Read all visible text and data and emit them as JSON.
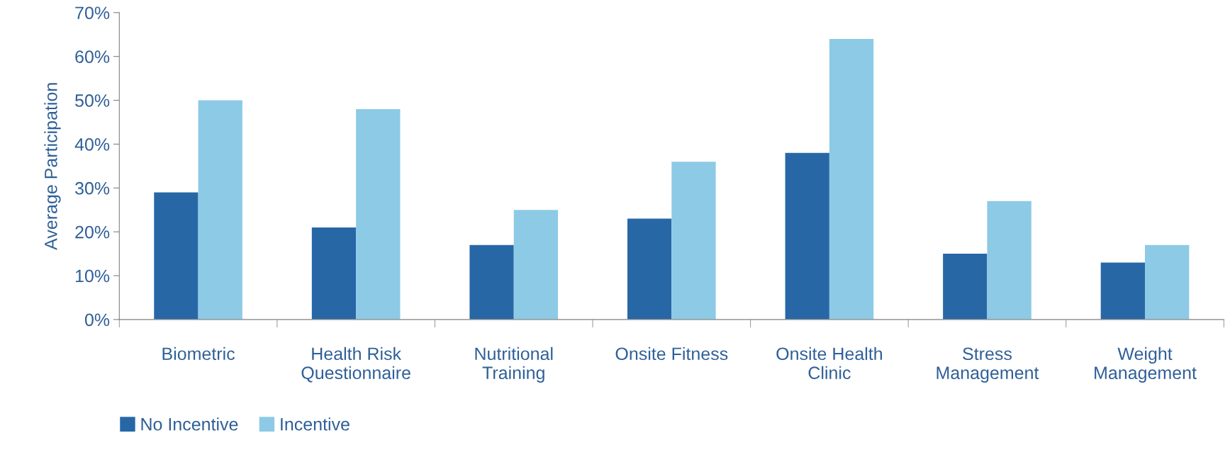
{
  "chart_data": {
    "type": "bar",
    "ylabel": "Average Participation",
    "categories": [
      "Biometric",
      "Health Risk\nQuestionnaire",
      "Nutritional\nTraining",
      "Onsite Fitness",
      "Onsite Health\nClinic",
      "Stress\nManagement",
      "Weight\nManagement"
    ],
    "series": [
      {
        "name": "No Incentive",
        "color": "#2767a6",
        "values": [
          29,
          21,
          17,
          23,
          38,
          15,
          13
        ]
      },
      {
        "name": "Incentive",
        "color": "#8ccae6",
        "values": [
          50,
          48,
          25,
          36,
          64,
          27,
          17
        ]
      }
    ],
    "ylim": [
      0,
      70
    ],
    "yticks": [
      {
        "value": 0,
        "label": "0%"
      },
      {
        "value": 10,
        "label": "10%"
      },
      {
        "value": 20,
        "label": "20%"
      },
      {
        "value": 30,
        "label": "30%"
      },
      {
        "value": 40,
        "label": "40%"
      },
      {
        "value": 50,
        "label": "50%"
      },
      {
        "value": 60,
        "label": "60%"
      },
      {
        "value": 70,
        "label": "70%"
      }
    ],
    "grid": false,
    "legend": "bottom left"
  }
}
